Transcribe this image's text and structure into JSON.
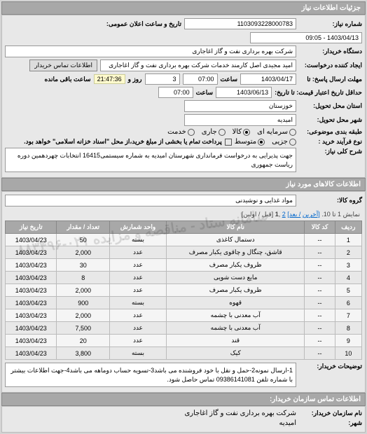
{
  "headers": {
    "main": "جزئیات اطلاعات نیاز",
    "goods": "اطلاعات کالاهای مورد نیاز",
    "contact": "اطلاعات تماس سازمان خریدار:"
  },
  "labels": {
    "reqNumber": "شماره نیاز:",
    "announceDate": "تاریخ و ساعت اعلان عمومی:",
    "buyerCompany": "دستگاه خریدار:",
    "requester": "ایجاد کننده درخواست:",
    "contactBtn": "اطلاعات تماس خریدار",
    "replyDeadline": "مهلت ارسال پاسخ: تا",
    "hour": "ساعت",
    "remaining": "ساعت باقی مانده",
    "dayAnd": "روز و",
    "creditDeadline": "حداقل تاریخ اعتبار قیمت: تا تاریخ:",
    "deliveryState": "استان محل تحویل:",
    "deliveryCity": "شهر محل تحویل:",
    "budgetType": "طبقه بندی موضوعی:",
    "contractType": "نوع فرآیند خرید :",
    "partialPay": "پرداخت تمام یا بخشی از مبلغ خرید،از محل \"اسناد خزانه اسلامی\" خواهد بود.",
    "generalDesc": "شرح کلی نیاز:",
    "goodsGroup": "گروه کالا:",
    "notes": "توضیحات خریدار:",
    "buyerOrgName": "نام سازمان خریدار:",
    "city": "شهر:"
  },
  "values": {
    "reqNumber": "1103093228000783",
    "announceDate": "1403/04/13 - 09:05",
    "buyerCompany": "شرکت بهره برداری نفت و گاز اغاجاری",
    "requester": "امید مجیدی اصل کارمند خدمات شرکت بهره برداری نفت و گاز اغاجاری",
    "replyDate": "1403/04/17",
    "replyTime": "07:00",
    "remainDays": "3",
    "remainTime": "21:47:36",
    "creditDate": "1403/06/13",
    "creditTime": "07:00",
    "state": "خوزستان",
    "city": "امیدیه",
    "generalDesc": "جهت پذیرایی به درخواست فرمانداری شهرستان امیدیه به شماره سیستمی16415 انتخابات چهردهمین دوره ریاست جمهوری",
    "goodsGroup": "مواد غذایی و نوشیدنی",
    "notes": "1-ارسال نمونه2-حمل و نقل با خود فروشنده می باشد3-تسویه حساب دوماهه می باشد4-جهت اطلاعات بیشتر با شماره تلفن 09386141081 تماس حاصل شود.",
    "buyerOrgName": "شرکت بهره برداری نفت و گاز اغاجاری",
    "buyerCity": "امیدیه"
  },
  "radios": {
    "budget": {
      "capital": "سرمایه ای",
      "goods": "کالا",
      "current": "جاری",
      "service": "خدمت"
    },
    "contract": {
      "small": "جزیی",
      "medium": "متوسط"
    }
  },
  "pager": {
    "showing": "نمایش 1 تا 10.",
    "last": "[آخرین",
    "next": "/ بعد]",
    "p2": "2",
    "p1": "1",
    "firstPrev": "[قبل / اولین]"
  },
  "table": {
    "cols": {
      "row": "ردیف",
      "code": "کد کالا",
      "name": "نام کالا",
      "unit": "واحد شمارش",
      "qty": "تعداد / مقدار",
      "date": "تاریخ نیاز"
    },
    "rows": [
      {
        "n": "1",
        "code": "--",
        "name": "دستمال کاغذی",
        "unit": "بسته",
        "qty": "50",
        "date": "1403/04/23"
      },
      {
        "n": "2",
        "code": "--",
        "name": "قاشق، چنگال و چاقوی یکبار مصرف",
        "unit": "عدد",
        "qty": "2,000",
        "date": "1403/04/23"
      },
      {
        "n": "3",
        "code": "--",
        "name": "ظروف یکبار مصرف",
        "unit": "عدد",
        "qty": "30",
        "date": "1403/04/23"
      },
      {
        "n": "4",
        "code": "--",
        "name": "مایع دست شویی",
        "unit": "عدد",
        "qty": "8",
        "date": "1403/04/23"
      },
      {
        "n": "5",
        "code": "--",
        "name": "ظروف یکبار مصرف",
        "unit": "عدد",
        "qty": "2,000",
        "date": "1403/04/23"
      },
      {
        "n": "6",
        "code": "--",
        "name": "قهوه",
        "unit": "بسته",
        "qty": "900",
        "date": "1403/04/23"
      },
      {
        "n": "7",
        "code": "--",
        "name": "آب معدنی با چشمه",
        "unit": "عدد",
        "qty": "2,000",
        "date": "1403/04/23"
      },
      {
        "n": "8",
        "code": "--",
        "name": "آب معدنی با چشمه",
        "unit": "عدد",
        "qty": "7,500",
        "date": "1403/04/23"
      },
      {
        "n": "9",
        "code": "--",
        "name": "قند",
        "unit": "عدد",
        "qty": "20",
        "date": "1403/04/23"
      },
      {
        "n": "10",
        "code": "--",
        "name": "کیک",
        "unit": "بسته",
        "qty": "3,800",
        "date": "1403/04/23"
      }
    ]
  },
  "watermark": "سامانه ستاد - مناقصه و مزایده\n۰۲۱-۸۸۳۴۹۶"
}
